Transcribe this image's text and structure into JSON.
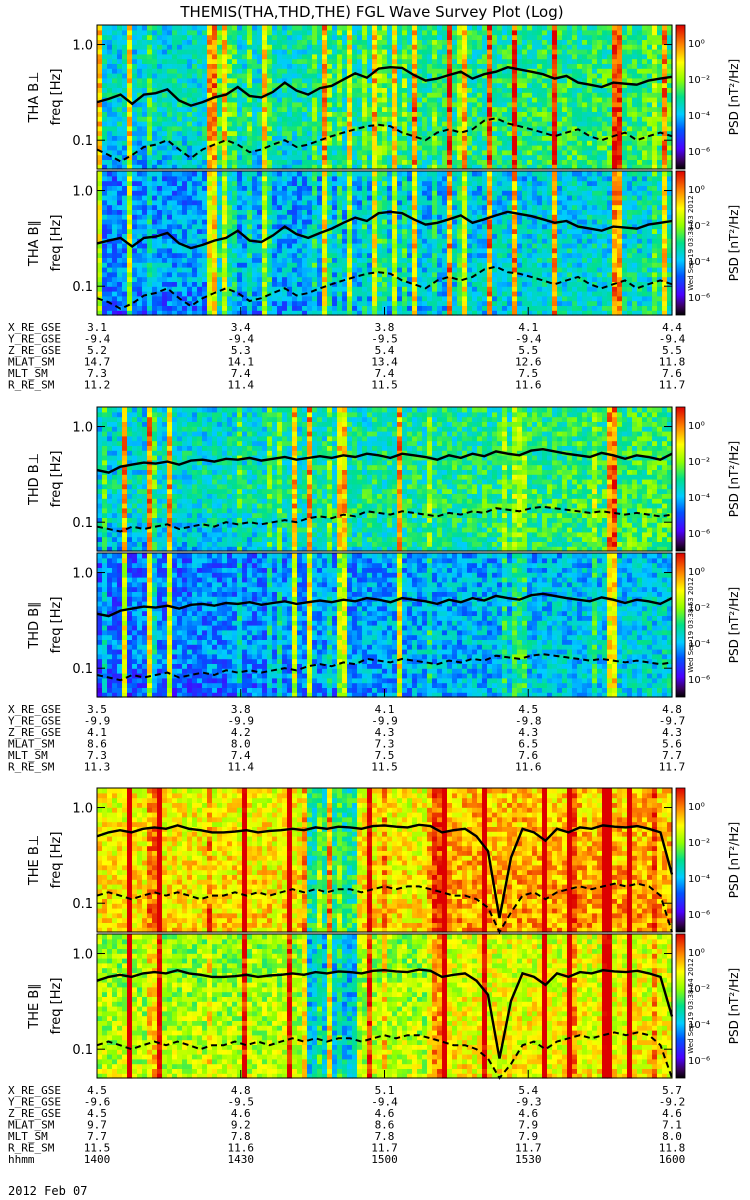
{
  "chart_data": {
    "type": "heatmap",
    "title": "THEMIS(THA,THD,THE) FGL Wave Survey Plot (Log)",
    "date_label": "2012 Feb 07",
    "timestamps": [
      "Wed Sep 19 03:38:53 2012",
      "Wed Sep 19 03:38:53 2012",
      "Wed Sep 19 03:38:54 2012"
    ],
    "freq_axis": {
      "label": "freq [Hz]",
      "ticks": [
        "1.0",
        "0.1"
      ],
      "range": [
        0.05,
        1.6
      ]
    },
    "colorbar": {
      "label": "PSD [nT²/Hz]",
      "tick_labels": [
        "10⁰",
        "10⁻²",
        "10⁻⁴",
        "10⁻⁶"
      ],
      "range_log": [
        -7,
        1
      ]
    },
    "time_axis": {
      "row_label": "hhmm",
      "labels": [
        "1400",
        "1430",
        "1500",
        "1530",
        "1600"
      ],
      "range_min": [
        840,
        960
      ]
    },
    "probes": [
      {
        "name": "THA",
        "panels": [
          {
            "label": "THA B⊥",
            "level": 0.45,
            "solid_hz": [
              0.25,
              0.27,
              0.3,
              0.24,
              0.3,
              0.31,
              0.34,
              0.26,
              0.23,
              0.25,
              0.28,
              0.3,
              0.36,
              0.29,
              0.28,
              0.32,
              0.4,
              0.33,
              0.3,
              0.35,
              0.37,
              0.43,
              0.5,
              0.45,
              0.56,
              0.58,
              0.57,
              0.48,
              0.42,
              0.44,
              0.48,
              0.52,
              0.44,
              0.49,
              0.52,
              0.58,
              0.55,
              0.52,
              0.49,
              0.44,
              0.47,
              0.4,
              0.38,
              0.36,
              0.4,
              0.39,
              0.38,
              0.42,
              0.44,
              0.46
            ],
            "dashed_hz": [
              0.08,
              0.07,
              0.06,
              0.07,
              0.085,
              0.09,
              0.1,
              0.08,
              0.065,
              0.08,
              0.09,
              0.1,
              0.09,
              0.075,
              0.08,
              0.09,
              0.1,
              0.085,
              0.09,
              0.1,
              0.11,
              0.12,
              0.13,
              0.14,
              0.145,
              0.14,
              0.12,
              0.11,
              0.1,
              0.12,
              0.13,
              0.12,
              0.13,
              0.16,
              0.17,
              0.15,
              0.14,
              0.13,
              0.12,
              0.11,
              0.12,
              0.13,
              0.11,
              0.1,
              0.11,
              0.12,
              0.1,
              0.11,
              0.12,
              0.11
            ]
          },
          {
            "label": "THA B∥",
            "level": 0.35,
            "solid_hz": [
              0.28,
              0.3,
              0.32,
              0.26,
              0.32,
              0.33,
              0.36,
              0.28,
              0.25,
              0.27,
              0.3,
              0.32,
              0.38,
              0.3,
              0.29,
              0.34,
              0.42,
              0.35,
              0.32,
              0.36,
              0.4,
              0.46,
              0.52,
              0.48,
              0.58,
              0.6,
              0.58,
              0.5,
              0.44,
              0.46,
              0.5,
              0.55,
              0.46,
              0.5,
              0.55,
              0.6,
              0.57,
              0.54,
              0.5,
              0.46,
              0.48,
              0.42,
              0.4,
              0.38,
              0.42,
              0.41,
              0.4,
              0.44,
              0.46,
              0.48
            ],
            "dashed_hz": [
              0.075,
              0.068,
              0.058,
              0.066,
              0.08,
              0.085,
              0.095,
              0.075,
              0.062,
              0.075,
              0.085,
              0.095,
              0.085,
              0.07,
              0.075,
              0.085,
              0.095,
              0.08,
              0.085,
              0.095,
              0.105,
              0.115,
              0.125,
              0.135,
              0.14,
              0.135,
              0.115,
              0.105,
              0.095,
              0.115,
              0.125,
              0.115,
              0.125,
              0.15,
              0.16,
              0.14,
              0.135,
              0.125,
              0.115,
              0.105,
              0.115,
              0.125,
              0.105,
              0.095,
              0.105,
              0.115,
              0.095,
              0.105,
              0.115,
              0.105
            ]
          }
        ],
        "ephemeris": [
          {
            "name": "X_RE_GSE",
            "values": [
              "3.1",
              "3.4",
              "3.8",
              "4.1",
              "4.4"
            ]
          },
          {
            "name": "Y_RE_GSE",
            "values": [
              "-9.4",
              "-9.4",
              "-9.5",
              "-9.4",
              "-9.4"
            ]
          },
          {
            "name": "Z_RE_GSE",
            "values": [
              "5.2",
              "5.3",
              "5.4",
              "5.5",
              "5.5"
            ]
          },
          {
            "name": "MLAT_SM",
            "values": [
              "14.7",
              "14.1",
              "13.4",
              "12.6",
              "11.8"
            ]
          },
          {
            "name": "MLT_SM",
            "values": [
              "7.3",
              "7.4",
              "7.4",
              "7.5",
              "7.6"
            ]
          },
          {
            "name": "R_RE_SM",
            "values": [
              "11.2",
              "11.4",
              "11.5",
              "11.6",
              "11.7"
            ]
          }
        ]
      },
      {
        "name": "THD",
        "panels": [
          {
            "label": "THD B⊥",
            "level": 0.45,
            "solid_hz": [
              0.35,
              0.33,
              0.38,
              0.4,
              0.42,
              0.41,
              0.43,
              0.4,
              0.44,
              0.45,
              0.43,
              0.46,
              0.45,
              0.47,
              0.44,
              0.46,
              0.48,
              0.45,
              0.47,
              0.49,
              0.47,
              0.5,
              0.48,
              0.52,
              0.5,
              0.47,
              0.52,
              0.5,
              0.48,
              0.45,
              0.5,
              0.47,
              0.52,
              0.49,
              0.55,
              0.52,
              0.5,
              0.56,
              0.58,
              0.55,
              0.52,
              0.5,
              0.48,
              0.53,
              0.5,
              0.46,
              0.5,
              0.48,
              0.45,
              0.52
            ],
            "dashed_hz": [
              0.09,
              0.085,
              0.08,
              0.09,
              0.085,
              0.09,
              0.095,
              0.085,
              0.09,
              0.095,
              0.09,
              0.1,
              0.095,
              0.1,
              0.095,
              0.1,
              0.105,
              0.1,
              0.11,
              0.115,
              0.11,
              0.12,
              0.115,
              0.13,
              0.125,
              0.12,
              0.13,
              0.125,
              0.12,
              0.115,
              0.125,
              0.12,
              0.13,
              0.125,
              0.14,
              0.135,
              0.13,
              0.14,
              0.145,
              0.14,
              0.135,
              0.13,
              0.125,
              0.13,
              0.125,
              0.12,
              0.125,
              0.12,
              0.115,
              0.12
            ]
          },
          {
            "label": "THD B∥",
            "level": 0.32,
            "solid_hz": [
              0.37,
              0.35,
              0.4,
              0.42,
              0.44,
              0.43,
              0.45,
              0.42,
              0.46,
              0.47,
              0.45,
              0.48,
              0.47,
              0.49,
              0.46,
              0.48,
              0.5,
              0.47,
              0.49,
              0.51,
              0.49,
              0.52,
              0.5,
              0.54,
              0.52,
              0.49,
              0.54,
              0.52,
              0.5,
              0.47,
              0.52,
              0.49,
              0.54,
              0.51,
              0.57,
              0.54,
              0.52,
              0.58,
              0.6,
              0.57,
              0.54,
              0.52,
              0.5,
              0.55,
              0.52,
              0.48,
              0.52,
              0.5,
              0.47,
              0.54
            ],
            "dashed_hz": [
              0.085,
              0.08,
              0.075,
              0.085,
              0.08,
              0.085,
              0.09,
              0.08,
              0.085,
              0.09,
              0.085,
              0.095,
              0.09,
              0.095,
              0.09,
              0.095,
              0.1,
              0.095,
              0.105,
              0.11,
              0.105,
              0.115,
              0.11,
              0.125,
              0.12,
              0.115,
              0.125,
              0.12,
              0.115,
              0.11,
              0.12,
              0.115,
              0.125,
              0.12,
              0.135,
              0.13,
              0.125,
              0.135,
              0.14,
              0.135,
              0.13,
              0.125,
              0.12,
              0.125,
              0.12,
              0.115,
              0.12,
              0.115,
              0.11,
              0.115
            ]
          }
        ],
        "ephemeris": [
          {
            "name": "X_RE_GSE",
            "values": [
              "3.5",
              "3.8",
              "4.1",
              "4.5",
              "4.8"
            ]
          },
          {
            "name": "Y_RE_GSE",
            "values": [
              "-9.9",
              "-9.9",
              "-9.9",
              "-9.8",
              "-9.7"
            ]
          },
          {
            "name": "Z_RE_GSE",
            "values": [
              "4.1",
              "4.2",
              "4.3",
              "4.3",
              "4.3"
            ]
          },
          {
            "name": "MLAT_SM",
            "values": [
              "8.6",
              "8.0",
              "7.3",
              "6.5",
              "5.6"
            ]
          },
          {
            "name": "MLT_SM",
            "values": [
              "7.3",
              "7.4",
              "7.5",
              "7.6",
              "7.7"
            ]
          },
          {
            "name": "R_RE_SM",
            "values": [
              "11.3",
              "11.4",
              "11.5",
              "11.6",
              "11.7"
            ]
          }
        ]
      },
      {
        "name": "THE",
        "panels": [
          {
            "label": "THE B⊥",
            "level": 0.72,
            "solid_hz": [
              0.5,
              0.55,
              0.58,
              0.55,
              0.6,
              0.62,
              0.6,
              0.65,
              0.6,
              0.58,
              0.55,
              0.55,
              0.56,
              0.58,
              0.55,
              0.57,
              0.58,
              0.6,
              0.58,
              0.62,
              0.6,
              0.63,
              0.62,
              0.6,
              0.64,
              0.65,
              0.63,
              0.62,
              0.66,
              0.64,
              0.55,
              0.58,
              0.6,
              0.5,
              0.35,
              0.07,
              0.3,
              0.6,
              0.55,
              0.45,
              0.6,
              0.55,
              0.62,
              0.6,
              0.65,
              0.63,
              0.62,
              0.64,
              0.6,
              0.55,
              0.2
            ],
            "dashed_hz": [
              0.12,
              0.13,
              0.12,
              0.11,
              0.12,
              0.13,
              0.12,
              0.13,
              0.12,
              0.11,
              0.12,
              0.12,
              0.13,
              0.12,
              0.13,
              0.12,
              0.13,
              0.14,
              0.13,
              0.14,
              0.13,
              0.14,
              0.14,
              0.13,
              0.14,
              0.15,
              0.14,
              0.15,
              0.15,
              0.14,
              0.13,
              0.12,
              0.12,
              0.11,
              0.09,
              0.05,
              0.08,
              0.12,
              0.13,
              0.11,
              0.13,
              0.14,
              0.15,
              0.14,
              0.15,
              0.16,
              0.15,
              0.16,
              0.15,
              0.12,
              0.05
            ]
          },
          {
            "label": "THE B∥",
            "level": 0.62,
            "solid_hz": [
              0.52,
              0.57,
              0.6,
              0.57,
              0.62,
              0.64,
              0.62,
              0.67,
              0.62,
              0.6,
              0.57,
              0.57,
              0.58,
              0.6,
              0.57,
              0.59,
              0.6,
              0.62,
              0.6,
              0.64,
              0.62,
              0.65,
              0.64,
              0.62,
              0.66,
              0.67,
              0.65,
              0.64,
              0.68,
              0.66,
              0.57,
              0.6,
              0.62,
              0.52,
              0.37,
              0.08,
              0.32,
              0.62,
              0.57,
              0.47,
              0.62,
              0.57,
              0.64,
              0.62,
              0.67,
              0.65,
              0.64,
              0.66,
              0.62,
              0.57,
              0.22
            ],
            "dashed_hz": [
              0.11,
              0.12,
              0.11,
              0.1,
              0.11,
              0.12,
              0.11,
              0.12,
              0.11,
              0.1,
              0.11,
              0.11,
              0.12,
              0.11,
              0.12,
              0.11,
              0.12,
              0.13,
              0.12,
              0.13,
              0.12,
              0.13,
              0.13,
              0.12,
              0.13,
              0.14,
              0.13,
              0.14,
              0.14,
              0.13,
              0.12,
              0.11,
              0.11,
              0.1,
              0.08,
              0.05,
              0.07,
              0.11,
              0.12,
              0.1,
              0.12,
              0.13,
              0.14,
              0.13,
              0.14,
              0.15,
              0.14,
              0.15,
              0.14,
              0.11,
              0.05
            ]
          }
        ],
        "ephemeris": [
          {
            "name": "X_RE_GSE",
            "values": [
              "4.5",
              "4.8",
              "5.1",
              "5.4",
              "5.7"
            ]
          },
          {
            "name": "Y_RE_GSE",
            "values": [
              "-9.6",
              "-9.5",
              "-9.4",
              "-9.3",
              "-9.2"
            ]
          },
          {
            "name": "Z_RE_GSE",
            "values": [
              "4.5",
              "4.6",
              "4.6",
              "4.6",
              "4.6"
            ]
          },
          {
            "name": "MLAT_SM",
            "values": [
              "9.7",
              "9.2",
              "8.6",
              "7.9",
              "7.1"
            ]
          },
          {
            "name": "MLT_SM",
            "values": [
              "7.7",
              "7.8",
              "7.8",
              "7.9",
              "8.0"
            ]
          },
          {
            "name": "R_RE_SM",
            "values": [
              "11.5",
              "11.6",
              "11.7",
              "11.7",
              "11.8"
            ]
          }
        ]
      }
    ]
  }
}
